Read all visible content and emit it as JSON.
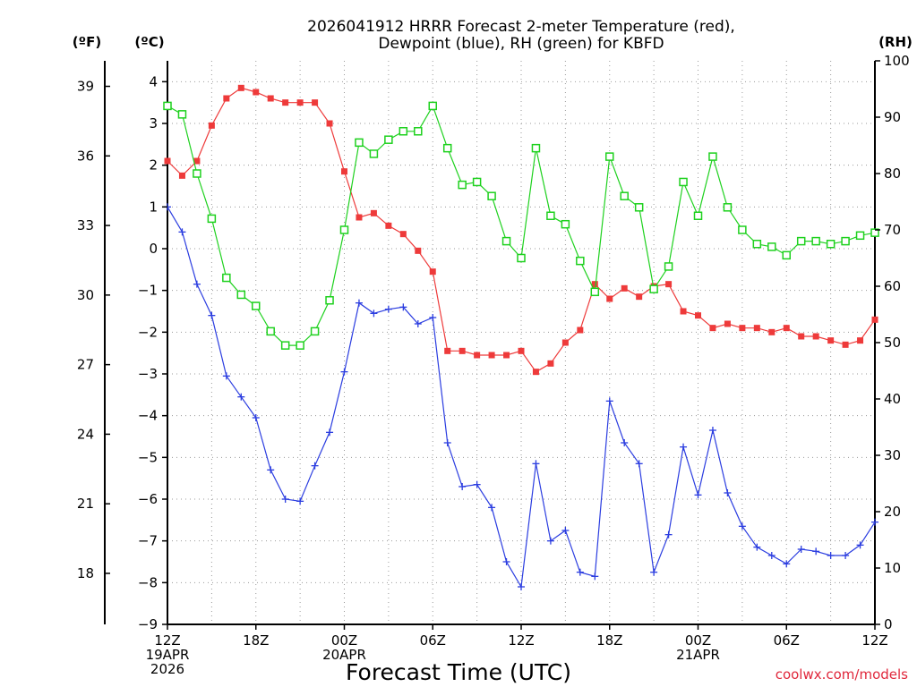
{
  "chart_data": {
    "type": "line",
    "title_lines": [
      "2026041912 HRRR Forecast 2-meter Temperature (red),",
      "Dewpoint (blue), RH (green) for KBFD"
    ],
    "xlabel": "Forecast Time (UTC)",
    "credit": "coolwx.com/models",
    "x_start": "2026-04-19T12Z",
    "x_step_hours": 1,
    "x_hours": 48,
    "x_ticks": [
      {
        "hour": 0,
        "lines": [
          "12Z",
          "19APR",
          "2026"
        ]
      },
      {
        "hour": 6,
        "lines": [
          "18Z"
        ]
      },
      {
        "hour": 12,
        "lines": [
          "00Z",
          "20APR"
        ]
      },
      {
        "hour": 18,
        "lines": [
          "06Z"
        ]
      },
      {
        "hour": 24,
        "lines": [
          "12Z"
        ]
      },
      {
        "hour": 30,
        "lines": [
          "18Z"
        ]
      },
      {
        "hour": 36,
        "lines": [
          "00Z",
          "21APR"
        ]
      },
      {
        "hour": 42,
        "lines": [
          "06Z"
        ]
      },
      {
        "hour": 48,
        "lines": [
          "12Z"
        ]
      }
    ],
    "y_celsius": {
      "unit_label": "(ºC)",
      "min": -9,
      "max": 4.5,
      "ticks": [
        4,
        3,
        2,
        1,
        0,
        -1,
        -2,
        -3,
        -4,
        -5,
        -6,
        -7,
        -8,
        -9
      ],
      "tick_labels": [
        "4",
        "3",
        "2",
        "1",
        "0",
        "−1",
        "−2",
        "−3",
        "−4",
        "−5",
        "−6",
        "−7",
        "−8",
        "−9"
      ]
    },
    "y_fahrenheit": {
      "unit_label": "(ºF)",
      "ticks": [
        39,
        36,
        33,
        30,
        27,
        24,
        21,
        18
      ]
    },
    "y_rh": {
      "unit_label": "(RH)",
      "min": 0,
      "max": 100,
      "ticks": [
        100,
        90,
        80,
        70,
        60,
        50,
        40,
        30,
        20,
        10,
        0
      ]
    },
    "grid": true,
    "series": [
      {
        "name": "Temperature",
        "axis": "celsius",
        "color": "#ee3a3a",
        "marker": "filled-square",
        "values": [
          2.1,
          1.75,
          2.1,
          2.95,
          3.6,
          3.85,
          3.75,
          3.6,
          3.5,
          3.5,
          3.5,
          3.0,
          1.85,
          0.75,
          0.85,
          0.55,
          0.35,
          -0.05,
          -0.55,
          -2.45,
          -2.45,
          -2.55,
          -2.55,
          -2.55,
          -2.45,
          -2.95,
          -2.75,
          -2.25,
          -1.95,
          -0.85,
          -1.2,
          -0.95,
          -1.15,
          -0.9,
          -0.85,
          -1.5,
          -1.6,
          -1.9,
          -1.8,
          -1.9,
          -1.9,
          -2.0,
          -1.9,
          -2.1,
          -2.1,
          -2.2,
          -2.3,
          -2.2,
          -1.7
        ]
      },
      {
        "name": "Dewpoint",
        "axis": "celsius",
        "color": "#2b3de0",
        "marker": "plus",
        "values": [
          1.0,
          0.4,
          -0.85,
          -1.6,
          -3.05,
          -3.55,
          -4.05,
          -5.3,
          -6.0,
          -6.05,
          -5.2,
          -4.4,
          -2.95,
          -1.3,
          -1.55,
          -1.45,
          -1.4,
          -1.8,
          -1.65,
          -4.65,
          -5.7,
          -5.65,
          -6.2,
          -7.5,
          -8.1,
          -5.15,
          -7.0,
          -6.75,
          -7.75,
          -7.85,
          -3.65,
          -4.65,
          -5.15,
          -7.75,
          -6.85,
          -4.75,
          -5.9,
          -4.35,
          -5.85,
          -6.65,
          -7.15,
          -7.35,
          -7.55,
          -7.2,
          -7.25,
          -7.35,
          -7.35,
          -7.1,
          -6.55
        ]
      },
      {
        "name": "RH",
        "axis": "rh",
        "color": "#1ed11e",
        "marker": "open-square",
        "values": [
          92,
          90.5,
          80,
          72,
          61.5,
          58.5,
          56.5,
          52,
          49.5,
          49.5,
          52,
          57.5,
          70,
          85.5,
          83.5,
          86,
          87.5,
          87.5,
          92,
          84.5,
          78,
          78.5,
          76,
          68,
          65,
          84.5,
          72.5,
          71,
          64.5,
          59,
          83,
          76,
          74,
          59.5,
          63.5,
          78.5,
          72.5,
          83,
          74,
          70,
          67.5,
          67,
          65.5,
          68,
          68,
          67.5,
          68,
          69,
          69.5
        ]
      }
    ]
  }
}
